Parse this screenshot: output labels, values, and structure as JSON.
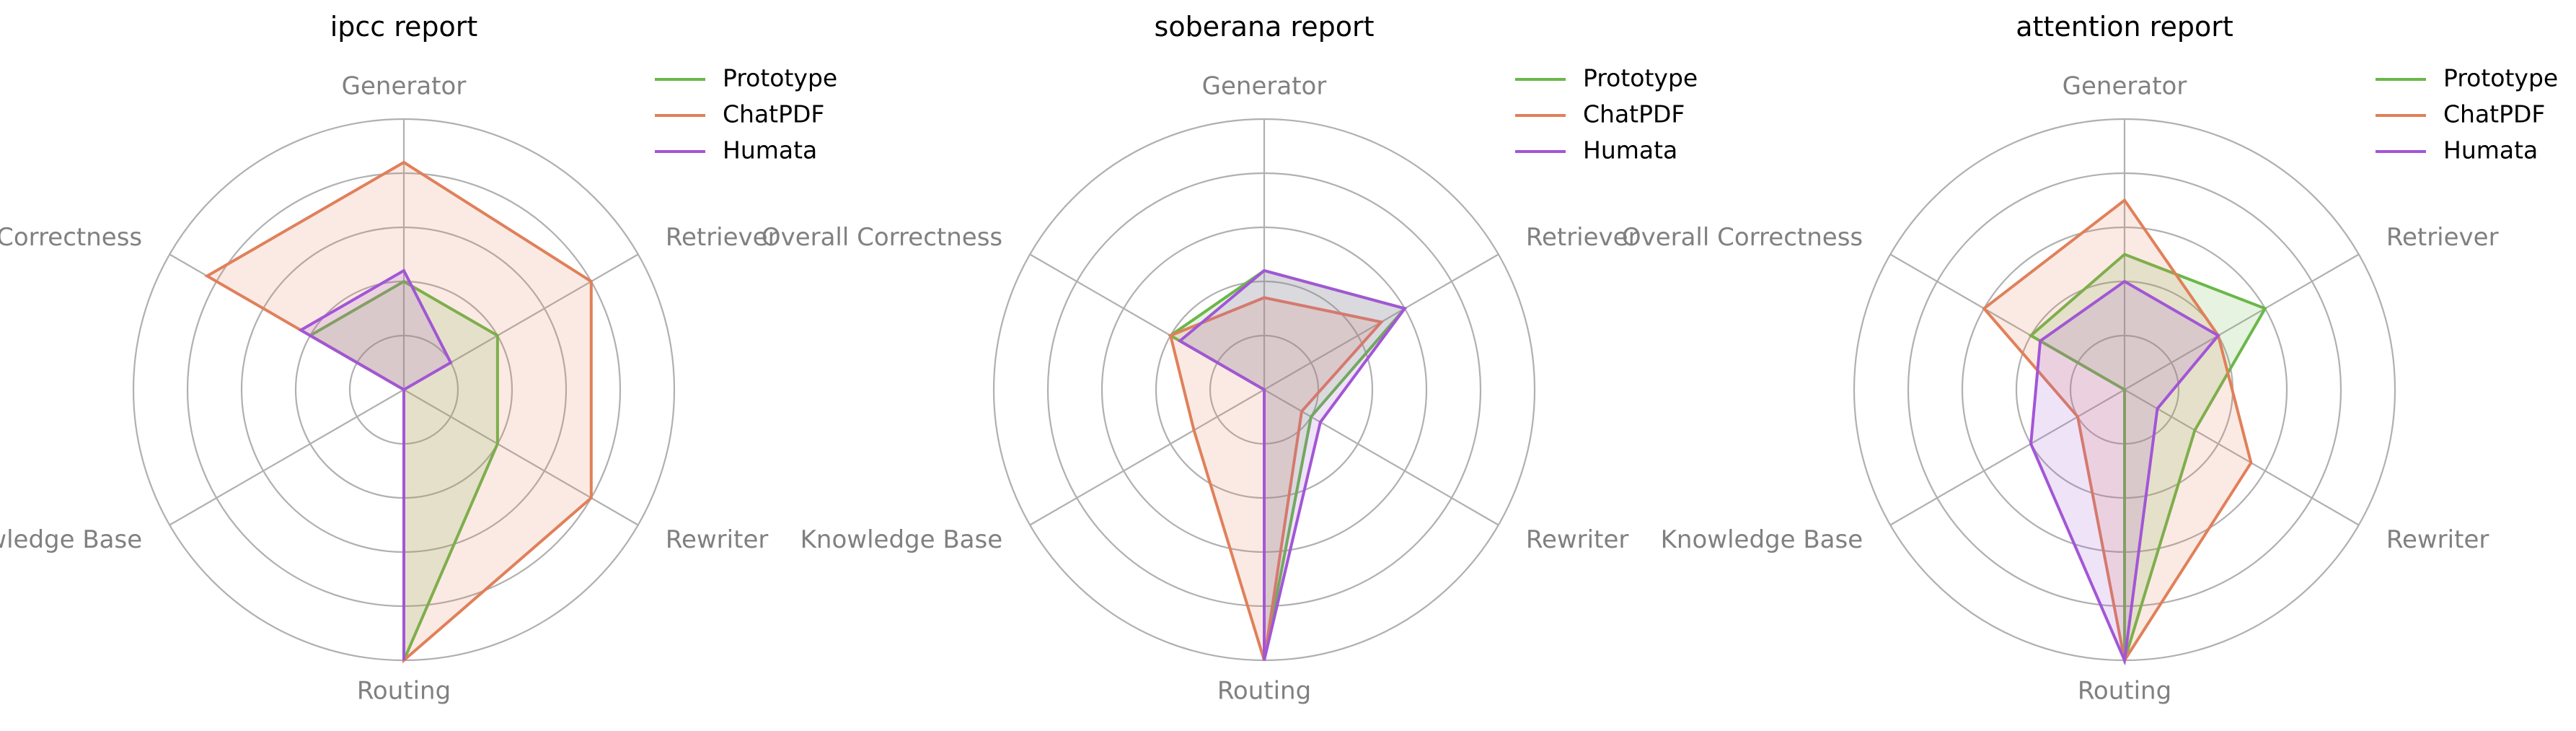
{
  "colors": {
    "Prototype": "#6ab74a",
    "ChatPDF": "#e0805a",
    "Humata": "#a256d6"
  },
  "chart_data": [
    {
      "type": "radar",
      "title": "ipcc report",
      "axes": [
        "Generator",
        "Retriever",
        "Rewriter",
        "Routing",
        "Knowledge Base",
        "Overall Correctness"
      ],
      "rlim": [
        0,
        5
      ],
      "grid": true,
      "legend_position": "top-right",
      "series": [
        {
          "name": "Prototype",
          "values": [
            2.0,
            2.0,
            2.0,
            5.0,
            0.0,
            2.0
          ]
        },
        {
          "name": "ChatPDF",
          "values": [
            4.2,
            4.0,
            4.0,
            5.0,
            0.0,
            4.2
          ]
        },
        {
          "name": "Humata",
          "values": [
            2.2,
            1.0,
            0.0,
            5.0,
            0.0,
            2.2
          ]
        }
      ]
    },
    {
      "type": "radar",
      "title": "soberana report",
      "axes": [
        "Generator",
        "Retriever",
        "Rewriter",
        "Routing",
        "Knowledge Base",
        "Overall Correctness"
      ],
      "rlim": [
        0,
        5
      ],
      "grid": true,
      "legend_position": "top-right",
      "series": [
        {
          "name": "Prototype",
          "values": [
            2.2,
            3.0,
            1.0,
            5.0,
            0.0,
            2.0
          ]
        },
        {
          "name": "ChatPDF",
          "values": [
            1.7,
            2.5,
            0.8,
            5.0,
            1.5,
            2.0
          ]
        },
        {
          "name": "Humata",
          "values": [
            2.2,
            3.0,
            1.2,
            5.0,
            0.0,
            1.8
          ]
        }
      ]
    },
    {
      "type": "radar",
      "title": "attention report",
      "axes": [
        "Generator",
        "Retriever",
        "Rewriter",
        "Routing",
        "Knowledge Base",
        "Overall Correctness"
      ],
      "rlim": [
        0,
        5
      ],
      "grid": true,
      "legend_position": "top-right",
      "series": [
        {
          "name": "Prototype",
          "values": [
            2.5,
            3.0,
            1.5,
            5.0,
            0.0,
            2.0
          ]
        },
        {
          "name": "ChatPDF",
          "values": [
            3.5,
            2.0,
            2.7,
            5.0,
            1.0,
            3.0
          ]
        },
        {
          "name": "Humata",
          "values": [
            2.0,
            2.0,
            0.7,
            5.0,
            2.0,
            1.8
          ]
        }
      ]
    }
  ]
}
